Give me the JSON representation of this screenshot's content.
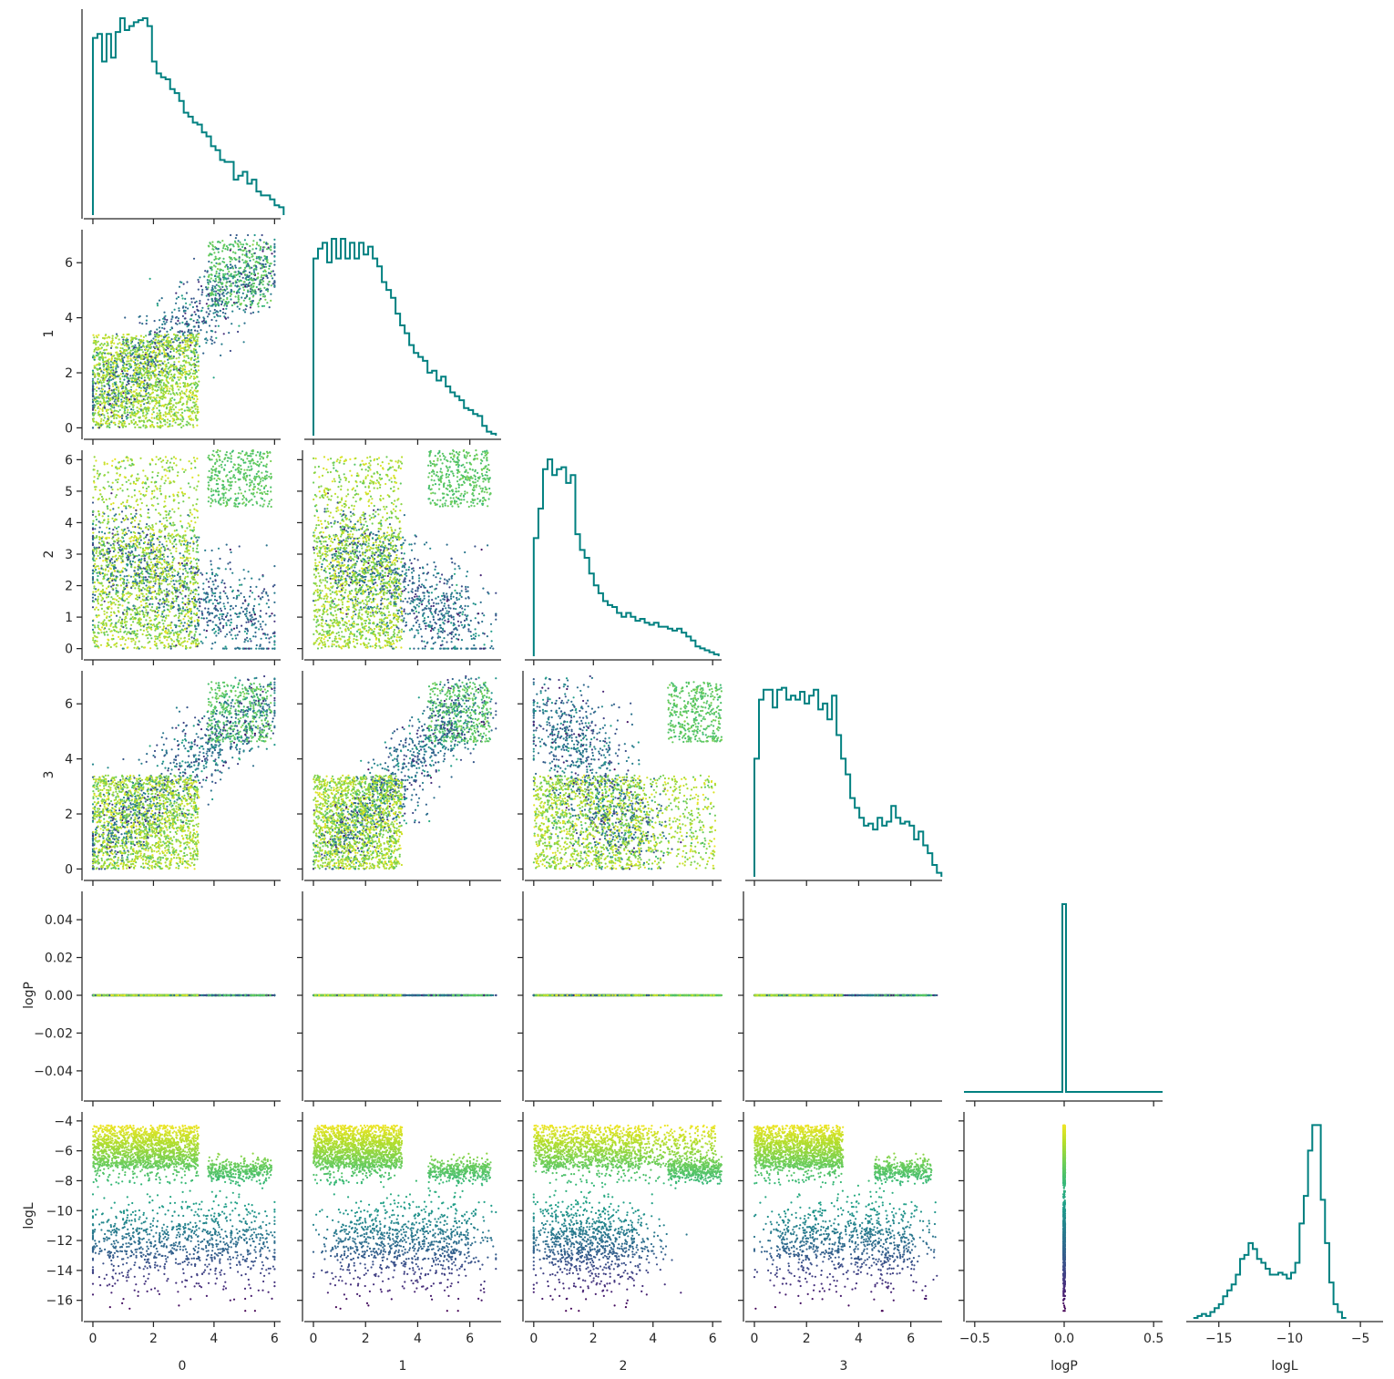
{
  "chart_data": {
    "type": "corner",
    "variables": [
      "0",
      "1",
      "2",
      "3",
      "logP",
      "logL"
    ],
    "axis_labels": [
      "0",
      "1",
      "2",
      "3",
      "logP",
      "logL"
    ],
    "colormap": "viridis",
    "color_variable": "logL",
    "color_range": [
      -16.7,
      -4.0
    ],
    "hist_color": "#008080",
    "ranges": {
      "0": [
        -0.3,
        6.2
      ],
      "1": [
        -0.35,
        7.2
      ],
      "2": [
        -0.3,
        6.3
      ],
      "3": [
        -0.35,
        7.2
      ],
      "logP": [
        -0.55,
        0.55
      ],
      "logL": [
        -17.3,
        -3.4
      ]
    },
    "ticks": {
      "0": {
        "values": [
          0,
          2,
          4,
          6
        ],
        "labels": [
          "0",
          "2",
          "4",
          "6"
        ]
      },
      "1": {
        "values": [
          0,
          2,
          4,
          6
        ],
        "labels": [
          "0",
          "2",
          "4",
          "6"
        ]
      },
      "2": {
        "values": [
          0,
          2,
          4,
          6
        ],
        "labels": [
          "0",
          "2",
          "4",
          "6"
        ]
      },
      "3": {
        "values": [
          0,
          2,
          4,
          6
        ],
        "labels": [
          "0",
          "2",
          "4",
          "6"
        ]
      },
      "logP": {
        "values": [
          -0.5,
          0.0,
          0.5
        ],
        "labels": [
          "−0.5",
          "0.0",
          "0.5"
        ]
      },
      "logL": {
        "values": [
          -15,
          -10,
          -5
        ],
        "labels": [
          "−15",
          "−10",
          "−5"
        ]
      }
    },
    "y_ticks": {
      "1": {
        "values": [
          0,
          2,
          4,
          6
        ],
        "labels": [
          "0",
          "2",
          "4",
          "6"
        ]
      },
      "2": {
        "values": [
          0,
          1,
          2,
          3,
          4,
          5,
          6
        ],
        "labels": [
          "0",
          "1",
          "2",
          "3",
          "4",
          "5",
          "6"
        ]
      },
      "3": {
        "values": [
          0,
          2,
          4,
          6
        ],
        "labels": [
          "0",
          "2",
          "4",
          "6"
        ]
      },
      "logP": {
        "values": [
          -0.04,
          -0.02,
          0.0,
          0.02,
          0.04
        ],
        "labels": [
          "−0.04",
          "−0.02",
          "0.00",
          "0.02",
          "0.04"
        ]
      },
      "logL": {
        "values": [
          -16,
          -14,
          -12,
          -10,
          -8,
          -6,
          -4
        ],
        "labels": [
          "−16",
          "−14",
          "−12",
          "−10",
          "−8",
          "−6",
          "−4"
        ]
      }
    },
    "logP_y_range": [
      -0.055,
      0.055
    ],
    "histograms": {
      "0": {
        "edges_start": 0.0,
        "bin_width": 0.15,
        "counts": [
          0.9,
          0.92,
          0.78,
          0.92,
          0.8,
          0.93,
          1.0,
          0.94,
          0.96,
          0.98,
          0.99,
          1.0,
          0.96,
          0.78,
          0.72,
          0.7,
          0.69,
          0.64,
          0.62,
          0.58,
          0.52,
          0.5,
          0.47,
          0.46,
          0.42,
          0.4,
          0.35,
          0.33,
          0.28,
          0.27,
          0.27,
          0.18,
          0.2,
          0.22,
          0.16,
          0.18,
          0.12,
          0.1,
          0.1,
          0.08,
          0.05,
          0.04
        ]
      },
      "1": {
        "edges_start": 0.0,
        "bin_width": 0.175,
        "counts": [
          0.9,
          0.95,
          0.98,
          0.88,
          1.0,
          0.9,
          1.0,
          0.9,
          0.98,
          0.9,
          0.98,
          0.92,
          0.96,
          0.9,
          0.86,
          0.78,
          0.74,
          0.7,
          0.62,
          0.56,
          0.52,
          0.46,
          0.42,
          0.4,
          0.38,
          0.32,
          0.33,
          0.28,
          0.3,
          0.25,
          0.22,
          0.2,
          0.18,
          0.14,
          0.13,
          0.11,
          0.1,
          0.05,
          0.02,
          0.01
        ]
      },
      "2": {
        "edges_start": 0.0,
        "bin_width": 0.155,
        "counts": [
          0.6,
          0.75,
          0.95,
          1.0,
          0.92,
          0.95,
          0.96,
          0.88,
          0.92,
          0.62,
          0.54,
          0.5,
          0.42,
          0.36,
          0.32,
          0.28,
          0.26,
          0.25,
          0.22,
          0.2,
          0.22,
          0.2,
          0.18,
          0.19,
          0.17,
          0.16,
          0.17,
          0.15,
          0.15,
          0.14,
          0.13,
          0.14,
          0.12,
          0.1,
          0.08,
          0.05,
          0.04,
          0.03,
          0.02,
          0.01
        ]
      },
      "3": {
        "edges_start": 0.0,
        "bin_width": 0.175,
        "counts": [
          0.6,
          0.9,
          0.95,
          0.95,
          0.86,
          0.95,
          0.96,
          0.9,
          0.92,
          0.9,
          0.94,
          0.88,
          0.92,
          0.95,
          0.85,
          0.88,
          0.8,
          0.92,
          0.72,
          0.6,
          0.52,
          0.4,
          0.35,
          0.3,
          0.26,
          0.27,
          0.24,
          0.3,
          0.26,
          0.28,
          0.36,
          0.3,
          0.27,
          0.28,
          0.26,
          0.19,
          0.23,
          0.16,
          0.12,
          0.06,
          0.02
        ]
      },
      "logP": {
        "spike_at": 0.0,
        "count": 1.0
      },
      "logL": {
        "edges_start": -16.8,
        "bin_width": 0.3,
        "counts": [
          0.0,
          0.01,
          0.02,
          0.01,
          0.03,
          0.05,
          0.07,
          0.11,
          0.14,
          0.17,
          0.22,
          0.3,
          0.32,
          0.38,
          0.35,
          0.3,
          0.28,
          0.25,
          0.22,
          0.22,
          0.23,
          0.22,
          0.2,
          0.23,
          0.28,
          0.48,
          0.62,
          0.85,
          0.98,
          0.98,
          0.6,
          0.38,
          0.18,
          0.07,
          0.03,
          0.0
        ]
      }
    },
    "n_points": 3000
  }
}
